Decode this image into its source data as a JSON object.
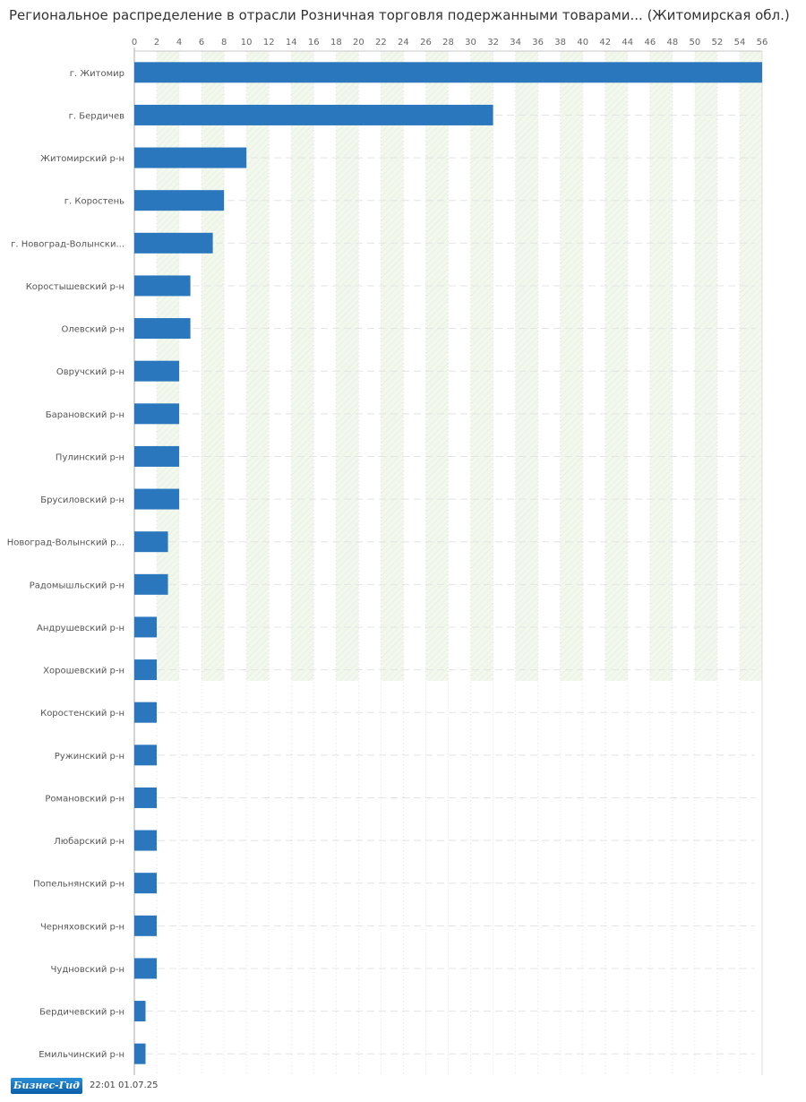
{
  "chart_data": {
    "type": "bar",
    "orientation": "horizontal",
    "title": "Региональное распределение в отрасли Розничная торговля подержанными товарами... (Житомирская обл.)",
    "xlim": [
      0,
      56
    ],
    "x_ticks": [
      "0",
      "2",
      "4",
      "6",
      "8",
      "10",
      "12",
      "14",
      "16",
      "18",
      "20",
      "22",
      "24",
      "26",
      "28",
      "30",
      "32",
      "34",
      "36",
      "38",
      "40",
      "42",
      "44",
      "46",
      "48",
      "50",
      "52",
      "54",
      "56"
    ],
    "grid": true,
    "bar_color": "#2b77be",
    "categories": [
      "г. Житомир",
      "г. Бердичев",
      "Житомирский р-н",
      "г. Коростень",
      "г. Новоград-Волынски...",
      "Коростышевский р-н",
      "Олевский р-н",
      "Овручский р-н",
      "Барановский р-н",
      "Пулинский р-н",
      "Брусиловский р-н",
      "Новоград-Волынский р...",
      "Радомышльский р-н",
      "Андрушевский р-н",
      "Хорошевский р-н",
      "Коростенский р-н",
      "Ружинский р-н",
      "Романовский р-н",
      "Любарский р-н",
      "Попельнянский р-н",
      "Черняховский р-н",
      "Чудновский р-н",
      "Бердичевский р-н",
      "Емильчинский р-н"
    ],
    "values": [
      56,
      32,
      10,
      8,
      7,
      5,
      5,
      4,
      4,
      4,
      4,
      3,
      3,
      2,
      2,
      2,
      2,
      2,
      2,
      2,
      2,
      2,
      1,
      1
    ]
  },
  "footer": {
    "logo": "Бизнес-Гид",
    "timestamp": "22:01 01.07.25"
  }
}
